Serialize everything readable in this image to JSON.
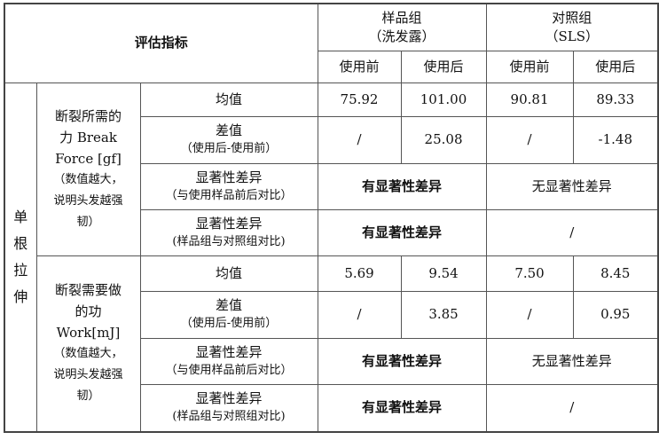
{
  "header": {
    "indicator": "评估指标",
    "sample_group": "样品组",
    "sample_group_sub": "（洗发露）",
    "control_group": "对照组",
    "control_group_sub": "（SLS）",
    "before": "使用前",
    "after": "使用后"
  },
  "category": "单根拉伸",
  "sections": [
    {
      "name_lines": [
        "断裂所需的",
        "力 Break",
        "Force [gf]"
      ],
      "note_lines": [
        "（数值越大，",
        "说明头发越强",
        "韧）"
      ],
      "mean_label": "均值",
      "mean": [
        "75.92",
        "101.00",
        "90.81",
        "89.33"
      ],
      "diff_label": "差值",
      "diff_sub": "（使用后-使用前）",
      "diff": [
        "/",
        "25.08",
        "/",
        "-1.48"
      ],
      "sig1_label": "显著性差异",
      "sig1_sub": "（与使用样品前后对比）",
      "sig1_sample": "有显著性差异",
      "sig1_control": "无显著性差异",
      "sig2_label": "显著性差异",
      "sig2_sub": "(样品组与对照组对比)",
      "sig2_sample": "有显著性差异",
      "sig2_control": "/"
    },
    {
      "name_lines": [
        "断裂需要做",
        "的功",
        "Work[mJ]"
      ],
      "note_lines": [
        "（数值越大，",
        "说明头发越强",
        "韧）"
      ],
      "mean_label": "均值",
      "mean": [
        "5.69",
        "9.54",
        "7.50",
        "8.45"
      ],
      "diff_label": "差值",
      "diff_sub": "（使用后-使用前）",
      "diff": [
        "/",
        "3.85",
        "/",
        "0.95"
      ],
      "sig1_label": "显著性差异",
      "sig1_sub": "（与使用样品前后对比）",
      "sig1_sample": "有显著性差异",
      "sig1_control": "无显著性差异",
      "sig2_label": "显著性差异",
      "sig2_sub": "(样品组与对照组对比)",
      "sig2_sample": "有显著性差异",
      "sig2_control": "/"
    }
  ]
}
